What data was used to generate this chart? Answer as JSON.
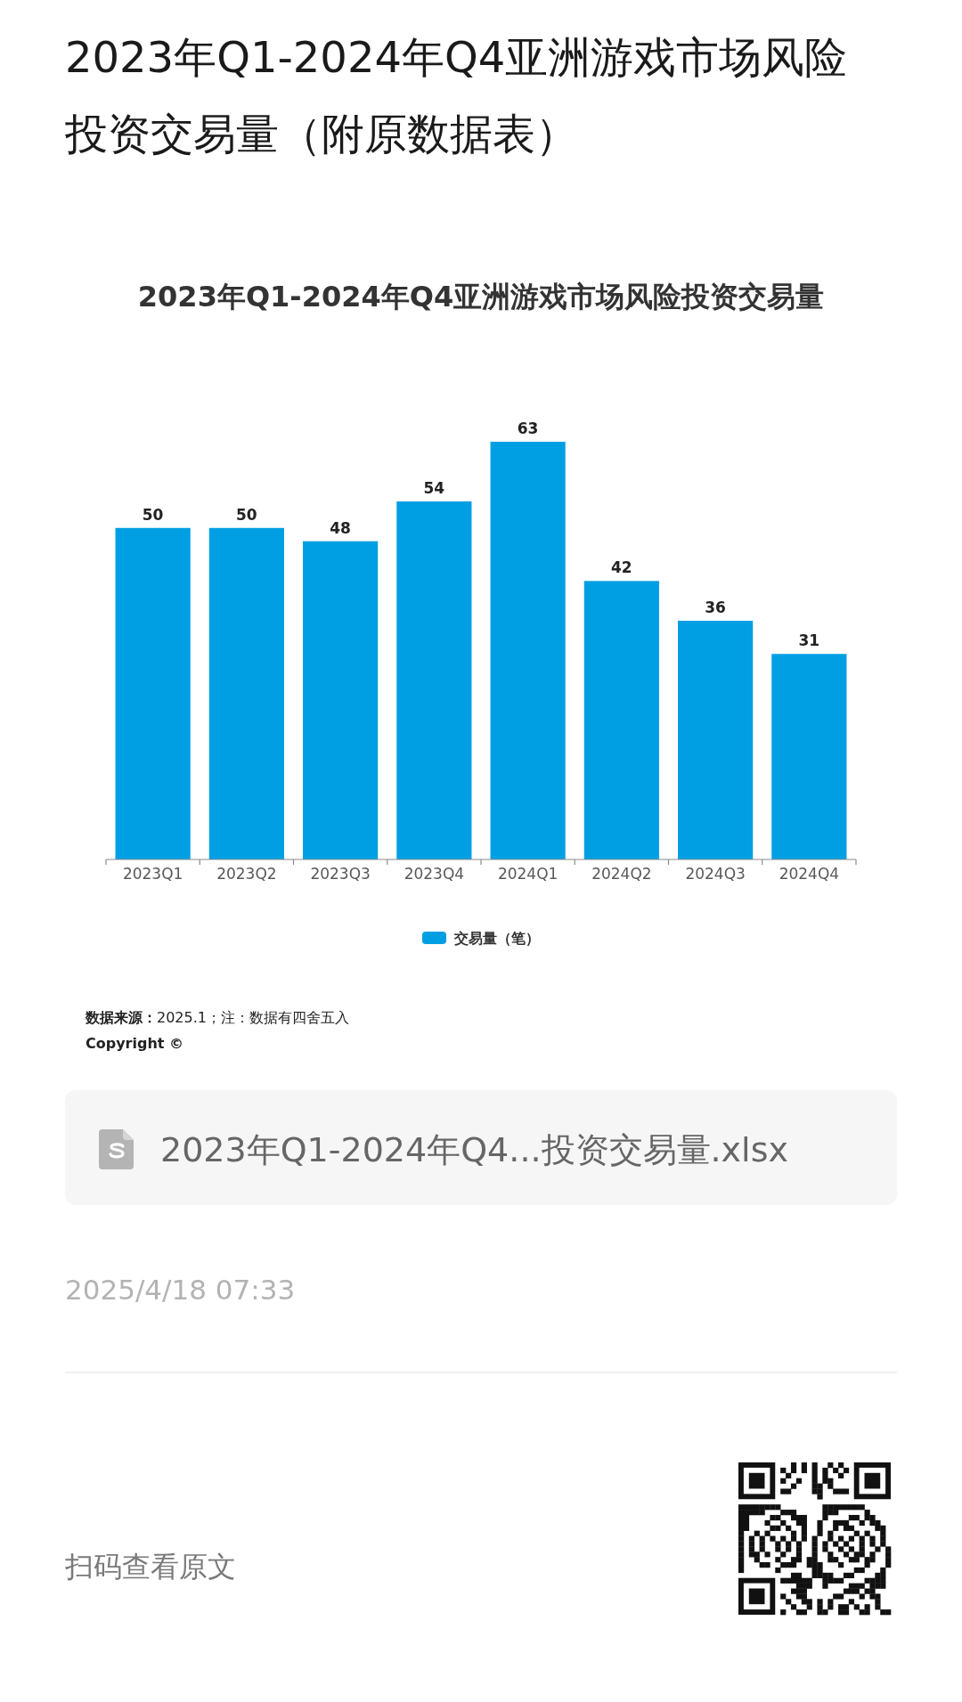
{
  "chart_data": {
    "type": "bar",
    "title": "2023年Q1-2024年Q4亚洲游戏市场风险投资交易量（附原数据表）",
    "subtitle": "2023年Q1-2024年Q4亚洲游戏市场风险投资交易量",
    "categories": [
      "2023Q1",
      "2023Q2",
      "2023Q3",
      "2023Q4",
      "2024Q1",
      "2024Q2",
      "2024Q3",
      "2024Q4"
    ],
    "series": [
      {
        "name": "交易量（笔）",
        "color": "#009fe3",
        "values": [
          50,
          50,
          48,
          54,
          63,
          42,
          36,
          31
        ]
      }
    ],
    "data_labels": true,
    "legend": "bottom",
    "annotations": [
      "数据来源：2025.1；注：数据有四舍五入",
      "Copyright ©",
      "2023年Q1-2024年Q4...投资交易量.xlsx",
      "2025/4/18 07:33",
      "扫码查看原文"
    ]
  }
}
